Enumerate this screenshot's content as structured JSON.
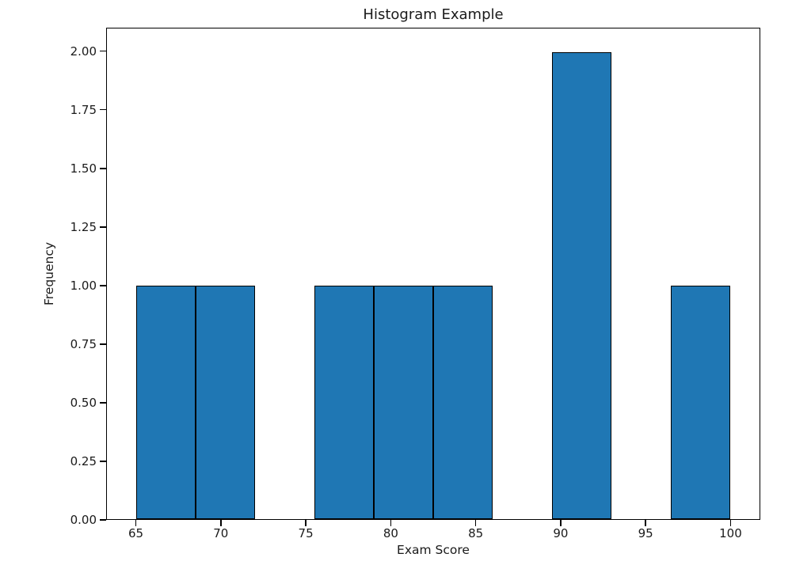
{
  "chart_data": {
    "type": "bar",
    "subtype": "histogram",
    "title": "Histogram Example",
    "xlabel": "Exam Score",
    "ylabel": "Frequency",
    "bin_edges": [
      65,
      68.5,
      72,
      75.5,
      79,
      82.5,
      86,
      89.5,
      93,
      96.5,
      100
    ],
    "counts": [
      1,
      1,
      0,
      1,
      1,
      1,
      0,
      2,
      0,
      1
    ],
    "xlim": [
      63.25,
      101.75
    ],
    "ylim": [
      0,
      2.1
    ],
    "xticks": [
      {
        "value": 65,
        "label": "65"
      },
      {
        "value": 70,
        "label": "70"
      },
      {
        "value": 75,
        "label": "75"
      },
      {
        "value": 80,
        "label": "80"
      },
      {
        "value": 85,
        "label": "85"
      },
      {
        "value": 90,
        "label": "90"
      },
      {
        "value": 95,
        "label": "95"
      },
      {
        "value": 100,
        "label": "100"
      }
    ],
    "yticks": [
      {
        "value": 0.0,
        "label": "0.00"
      },
      {
        "value": 0.25,
        "label": "0.25"
      },
      {
        "value": 0.5,
        "label": "0.50"
      },
      {
        "value": 0.75,
        "label": "0.75"
      },
      {
        "value": 1.0,
        "label": "1.00"
      },
      {
        "value": 1.25,
        "label": "1.25"
      },
      {
        "value": 1.5,
        "label": "1.50"
      },
      {
        "value": 1.75,
        "label": "1.75"
      },
      {
        "value": 2.0,
        "label": "2.00"
      }
    ],
    "bar_color": "#1f77b4",
    "bar_edge_color": "#000000",
    "background": "#ffffff",
    "grid": false,
    "legend": null
  }
}
